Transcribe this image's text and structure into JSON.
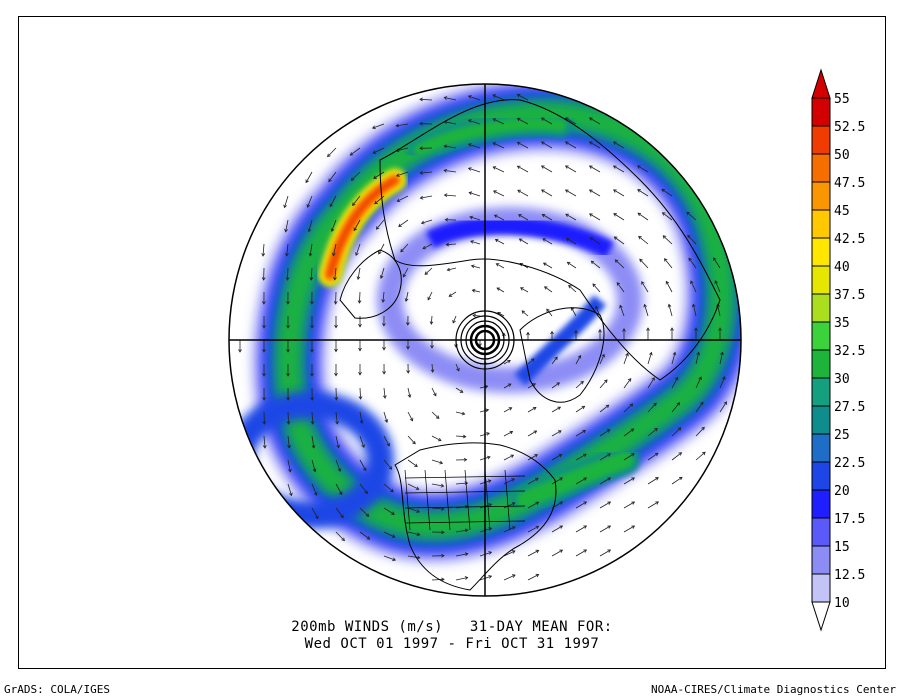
{
  "caption": {
    "line1": "200mb WINDS (m/s)   31-DAY MEAN FOR:",
    "line2": "Wed OCT 01 1997 - Fri OCT 31 1997"
  },
  "footer": {
    "left": "GrADS: COLA/IGES",
    "right": "NOAA-CIRES/Climate Diagnostics Center"
  },
  "colorbar": {
    "labels": [
      "55",
      "52.5",
      "50",
      "47.5",
      "45",
      "42.5",
      "40",
      "37.5",
      "35",
      "32.5",
      "30",
      "27.5",
      "25",
      "22.5",
      "20",
      "17.5",
      "15",
      "12.5",
      "10"
    ],
    "colors": [
      "#d20000",
      "#f03c00",
      "#f56e00",
      "#fa9600",
      "#ffc800",
      "#ffe600",
      "#e6e600",
      "#aade1e",
      "#3cd23c",
      "#1eb43c",
      "#14a07e",
      "#0f8c8c",
      "#1e6ec8",
      "#1e46e6",
      "#1e1eff",
      "#5a5afa",
      "#8c8cf5",
      "#c3c3f8",
      "#e8e8fd"
    ]
  },
  "map": {
    "projection": "north-polar-stereographic",
    "field": "200mb wind speed (m/s) with wind vectors",
    "colors": {
      "land": "#000000",
      "grid": "#000000",
      "background": "#ffffff"
    }
  }
}
